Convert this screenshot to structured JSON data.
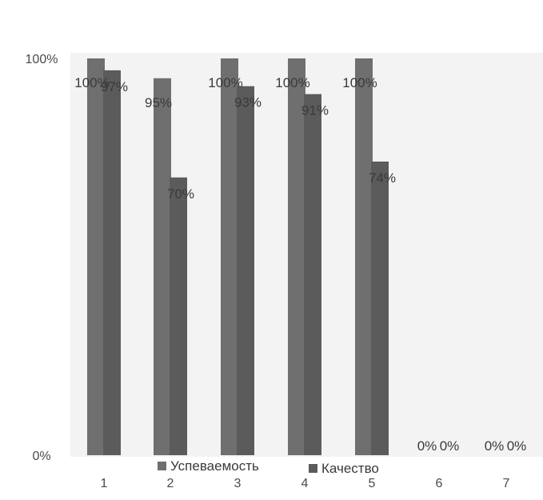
{
  "chart_data": {
    "type": "bar",
    "categories": [
      "1",
      "2",
      "3",
      "4",
      "5",
      "6",
      "7"
    ],
    "series": [
      {
        "name": "Успеваемость",
        "values": [
          100,
          95,
          100,
          100,
          100,
          0,
          0
        ],
        "labels": [
          "100%",
          "95%",
          "100%",
          "100%",
          "100%",
          "0%",
          "0%"
        ]
      },
      {
        "name": "Качество",
        "values": [
          97,
          70,
          93,
          91,
          74,
          0,
          0
        ],
        "labels": [
          "97%",
          "70%",
          "93%",
          "91%",
          "74%",
          "0%",
          "0%"
        ]
      }
    ],
    "yticks": [
      "0%",
      "100%"
    ],
    "ylim": [
      0,
      100
    ],
    "grid": false,
    "legend_position": "bottom",
    "colors": {
      "Успеваемость": "#6f6f6f",
      "Качество": "#5b5b5b",
      "plot_background": "#f3f3f3"
    }
  }
}
